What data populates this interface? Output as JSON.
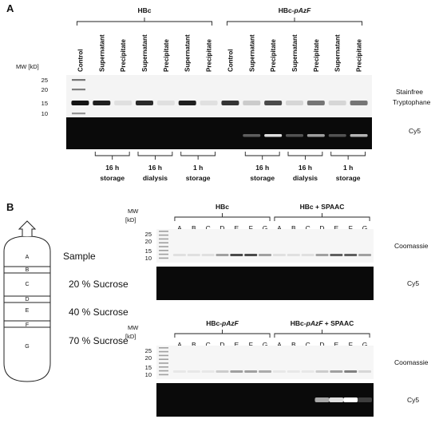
{
  "panel_a": {
    "label": "A",
    "groups": [
      "HBc",
      "HBc-pAzF"
    ],
    "group_italic": "pAzF",
    "lanes": [
      "Control",
      "Supernatant",
      "Precipitate",
      "Supernatant",
      "Precipitate",
      "Supernatant",
      "Precipitate",
      "Control",
      "Supernatant",
      "Precipitate",
      "Supernatant",
      "Precipitate",
      "Supernatant",
      "Precipitate"
    ],
    "mw_label": "MW [kD]",
    "mw_marks": [
      "25",
      "20",
      "15",
      "10"
    ],
    "gel_labels": [
      "Stainfree\nTryptophane",
      "Cy5"
    ],
    "conditions": [
      [
        "16 h",
        "storage"
      ],
      [
        "16 h",
        "dialysis"
      ],
      [
        "1 h",
        "storage"
      ],
      [
        "16 h",
        "storage"
      ],
      [
        "16 h",
        "dialysis"
      ],
      [
        "1 h",
        "storage"
      ]
    ],
    "band_intensity": [
      1.0,
      0.95,
      0.05,
      0.9,
      0.05,
      0.95,
      0.05,
      0.85,
      0.15,
      0.75,
      0.1,
      0.55,
      0.1,
      0.55
    ],
    "cy5_intensity": [
      0,
      0,
      0,
      0,
      0,
      0,
      0,
      0,
      0.25,
      0.85,
      0.2,
      0.55,
      0.2,
      0.65
    ]
  },
  "panel_b": {
    "label": "B",
    "gradient": {
      "fractions": [
        "A",
        "B",
        "C",
        "D",
        "E",
        "F",
        "G"
      ],
      "labels": [
        "Sample",
        "20 % Sucrose",
        "40 % Sucrose",
        "70 % Sucrose"
      ]
    },
    "top": {
      "groups": [
        "HBc",
        "HBc + SPAAC"
      ],
      "mw_label": [
        "MW",
        "[kD]"
      ],
      "mw_marks": [
        "25",
        "20",
        "15",
        "10"
      ],
      "gel_labels": [
        "Coomassie",
        "Cy5"
      ],
      "coomassie_intensity": [
        0.05,
        0.05,
        0.05,
        0.35,
        0.75,
        0.75,
        0.35,
        0.05,
        0.05,
        0.05,
        0.35,
        0.65,
        0.65,
        0.35
      ],
      "cy5_intensity": [
        0,
        0,
        0,
        0,
        0,
        0,
        0,
        0,
        0,
        0,
        0,
        0,
        0,
        0
      ]
    },
    "bottom": {
      "groups": [
        "HBc-pAzF",
        "HBc-pAzF + SPAAC"
      ],
      "group_italic": "pAzF",
      "mw_label": [
        "MW",
        "[kD]"
      ],
      "mw_marks": [
        "25",
        "20",
        "15",
        "10"
      ],
      "gel_labels": [
        "Coomassie",
        "Cy5"
      ],
      "coomassie_intensity": [
        0.02,
        0.02,
        0.02,
        0.15,
        0.35,
        0.35,
        0.3,
        0.02,
        0.02,
        0.02,
        0.15,
        0.35,
        0.5,
        0.1
      ],
      "cy5_intensity": [
        0,
        0,
        0,
        0,
        0,
        0,
        0,
        0,
        0,
        0,
        0.6,
        0.85,
        1.0,
        0.1
      ]
    }
  }
}
